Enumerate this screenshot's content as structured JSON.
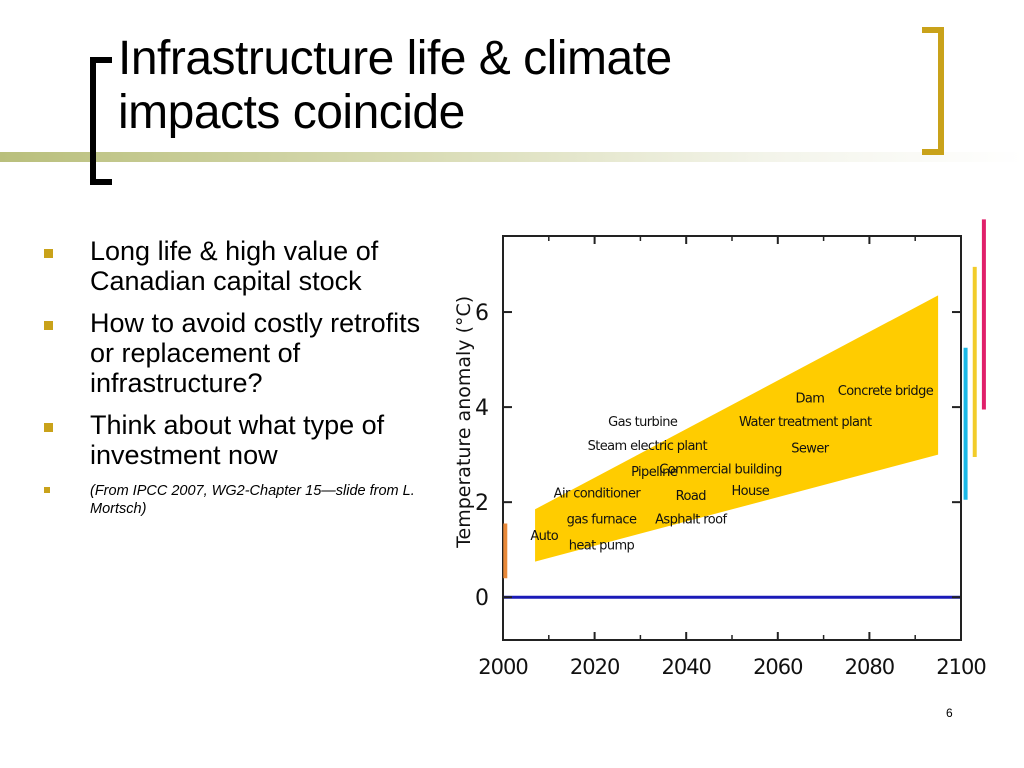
{
  "slide": {
    "title_line1": "Infrastructure life & climate",
    "title_line2": "impacts coincide",
    "page_number": "6",
    "bullets": [
      "Long life & high value of Canadian capital stock",
      "How to avoid costly retrofits or replacement of infrastructure?",
      "Think about what type of investment now"
    ],
    "citation": "(From IPCC 2007, WG2-Chapter 15—slide from L. Mortsch)"
  },
  "colors": {
    "bullet": "#c9a21a",
    "band": "#ffcc00",
    "baseline": "#1a1ab8",
    "bar_orange": "#e8893a",
    "bar_cyan": "#1ab8e6",
    "bar_yellow": "#f2cc2a",
    "bar_magenta": "#e0206a"
  },
  "chart_data": {
    "type": "area",
    "ylabel": "Temperature anomaly  (°C)",
    "xlim": [
      2000,
      2100
    ],
    "ylim": [
      -0.9,
      7.6
    ],
    "xticks": [
      2000,
      2020,
      2040,
      2060,
      2080,
      2100
    ],
    "yticks": [
      0,
      2,
      4,
      6
    ],
    "baseline": 0,
    "band": {
      "x": [
        2007,
        2095
      ],
      "lower": [
        0.75,
        3.0
      ],
      "upper": [
        1.85,
        6.35
      ]
    },
    "annotations": [
      {
        "text": "Gas turbine",
        "x": 2030.5,
        "y": 3.6
      },
      {
        "text": "Steam electric plant",
        "x": 2031.5,
        "y": 3.1
      },
      {
        "text": "Pipeline",
        "x": 2033,
        "y": 2.55
      },
      {
        "text": "Commercial building",
        "x": 2047.5,
        "y": 2.6
      },
      {
        "text": "Air conditioner",
        "x": 2020.5,
        "y": 2.1
      },
      {
        "text": "Road",
        "x": 2041,
        "y": 2.05
      },
      {
        "text": "House",
        "x": 2054,
        "y": 2.15
      },
      {
        "text": "gas furnace",
        "x": 2021.5,
        "y": 1.55
      },
      {
        "text": "Asphalt roof",
        "x": 2041,
        "y": 1.55
      },
      {
        "text": "Auto",
        "x": 2009,
        "y": 1.2
      },
      {
        "text": "heat pump",
        "x": 2021.5,
        "y": 1.0
      },
      {
        "text": "Dam",
        "x": 2067,
        "y": 4.1
      },
      {
        "text": "Concrete bridge",
        "x": 2083.5,
        "y": 4.25
      },
      {
        "text": "Water treatment plant",
        "x": 2066,
        "y": 3.6
      },
      {
        "text": "Sewer",
        "x": 2067,
        "y": 3.05
      }
    ],
    "side_bars": [
      {
        "color": "bar_orange",
        "x": 2000.5,
        "y_range": [
          0.4,
          1.55
        ]
      },
      {
        "color": "bar_cyan",
        "x": 2101,
        "y_range": [
          2.05,
          5.25
        ]
      },
      {
        "color": "bar_yellow",
        "x": 2103,
        "y_range": [
          2.95,
          6.95
        ]
      },
      {
        "color": "bar_magenta",
        "x": 2105,
        "y_range": [
          3.95,
          7.95
        ]
      }
    ],
    "grid": false
  }
}
